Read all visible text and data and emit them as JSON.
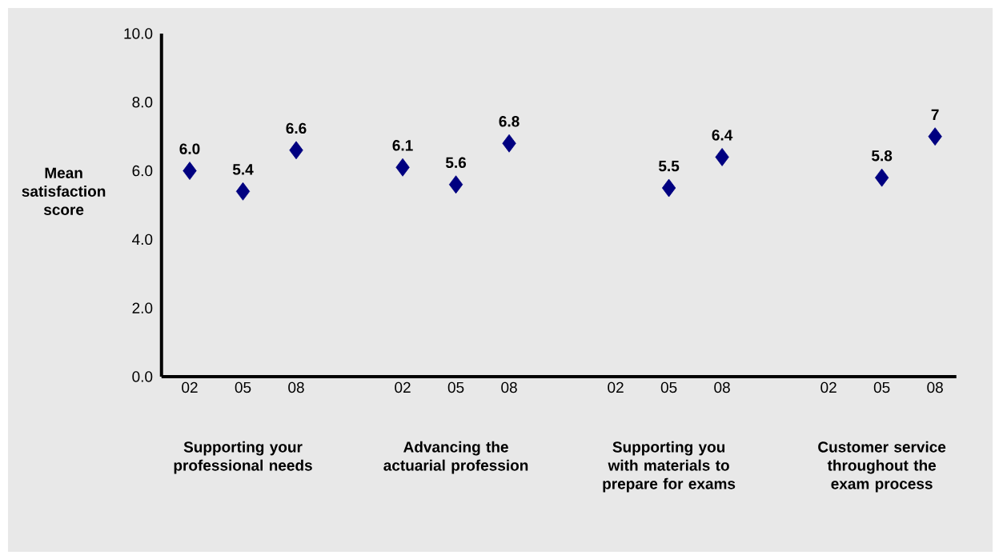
{
  "chart_data": {
    "type": "scatter",
    "ylabel": "Mean satisfaction score",
    "categories": [
      "02",
      "05",
      "08",
      null,
      "02",
      "05",
      "08",
      null,
      "02",
      "05",
      "08",
      null,
      "02",
      "05",
      "08"
    ],
    "values": [
      6.0,
      5.4,
      6.6,
      null,
      6.1,
      5.6,
      6.8,
      null,
      null,
      5.5,
      6.4,
      null,
      null,
      5.8,
      7.0
    ],
    "value_labels": [
      "6.0",
      "5.4",
      "6.6",
      null,
      "6.1",
      "5.6",
      "6.8",
      null,
      null,
      "5.5",
      "6.4",
      null,
      null,
      "5.8",
      "7"
    ],
    "color": "#000080",
    "marker": "diamond",
    "ylim": [
      0,
      10
    ],
    "yticks": [
      {
        "value": 0,
        "label": "0.0"
      },
      {
        "value": 2,
        "label": "2.0"
      },
      {
        "value": 4,
        "label": "4.0"
      },
      {
        "value": 6,
        "label": "6.0"
      },
      {
        "value": 8,
        "label": "8.0"
      },
      {
        "value": 10,
        "label": "10.0"
      }
    ],
    "annotations": [
      "Supporting your professional needs",
      "Advancing the actuarial profession",
      "Supporting you with materials to prepare for exams",
      "Customer service throughout the exam process"
    ]
  }
}
